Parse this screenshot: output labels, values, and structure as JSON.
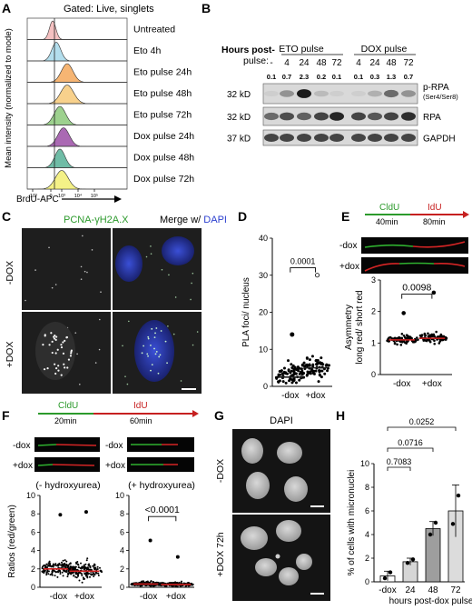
{
  "panels": {
    "A": {
      "letter": "A",
      "gate_label": "Gated: Live, singlets",
      "ylabel": "Mean intensity (normalized to mode)",
      "xlabel": "BrdU-APC",
      "xticks": [
        "-10³",
        "0",
        "10³",
        "10⁴",
        "10⁵"
      ],
      "rows": [
        {
          "label": "Untreated",
          "color": "#f3b6b6"
        },
        {
          "label": "Eto 4h",
          "color": "#a6d8ea"
        },
        {
          "label": "Eto pulse 24h",
          "color": "#f5a85a"
        },
        {
          "label": "Eto pulse 48h",
          "color": "#f7c978"
        },
        {
          "label": "Eto pulse 72h",
          "color": "#8cc97a"
        },
        {
          "label": "Dox pulse 24h",
          "color": "#9b4fa6"
        },
        {
          "label": "Dox pulse 48h",
          "color": "#56b096"
        },
        {
          "label": "Dox pulse 72h",
          "color": "#f2ee72"
        }
      ]
    },
    "B": {
      "letter": "B",
      "hours_label": "Hours post-",
      "pulse_label": "pulse:",
      "groups": [
        "ETO pulse",
        "DOX pulse"
      ],
      "lanes": [
        "-",
        "4",
        "24",
        "48",
        "72",
        "4",
        "24",
        "48",
        "72"
      ],
      "quant": [
        "0.1",
        "0.7",
        "2.3",
        "0.2",
        "0.1",
        "0.1",
        "0.3",
        "1.3",
        "0.7"
      ],
      "blots": [
        {
          "kd": "32 kD",
          "name": "p-RPA",
          "sub": "(Ser4/Ser8)"
        },
        {
          "kd": "32 kD",
          "name": "RPA",
          "sub": ""
        },
        {
          "kd": "37 kD",
          "name": "GAPDH",
          "sub": ""
        }
      ]
    },
    "C": {
      "letter": "C",
      "col1": "PCNA-γH2A.X",
      "col2_prefix": "Merge w/ ",
      "col2_dapi": "DAPI",
      "row1": "-DOX",
      "row2": "+DOX"
    },
    "D": {
      "letter": "D",
      "p_label": "0.0001"
    },
    "E": {
      "letter": "E",
      "cldu": "CldU",
      "cldu_time": "40min",
      "idu": "IdU",
      "idu_time": "80min",
      "fiber1": "-dox",
      "fiber2": "+dox",
      "p_label": "0.0098"
    },
    "F": {
      "letter": "F",
      "cldu": "CldU",
      "cldu_time": "20min",
      "idu": "IdU",
      "idu_time": "60min",
      "fiber_labels": [
        "-dox",
        "+dox",
        "-dox",
        "+dox"
      ],
      "sub1": "(- hydroxyurea)",
      "sub2": "(+ hydroxyurea)",
      "p_label": "<0.0001"
    },
    "G": {
      "letter": "G",
      "title": "DAPI",
      "row1": "-DOX",
      "row2": "+DOX 72h"
    },
    "H": {
      "letter": "H",
      "pvals": [
        "0.0252",
        "0.0716",
        "0.7083"
      ]
    }
  },
  "chart_data": [
    {
      "type": "scatter",
      "panel": "D",
      "categories": [
        "-dox",
        "+dox"
      ],
      "ylabel": "PLA foci/ nucleus",
      "ylim": [
        0,
        40
      ],
      "yticks": [
        0,
        10,
        20,
        30,
        40
      ],
      "medians": [
        2.5,
        5.0
      ],
      "max_points": [
        14,
        30
      ]
    },
    {
      "type": "scatter",
      "panel": "E",
      "categories": [
        "-dox",
        "+dox"
      ],
      "ylabel": "Asymmetry long red/ short red",
      "ylim": [
        0,
        3
      ],
      "yticks": [
        0,
        1,
        2,
        3
      ],
      "medians": [
        1.1,
        1.15
      ],
      "max_points": [
        1.95,
        2.6
      ]
    },
    {
      "type": "scatter",
      "panel": "F-left",
      "categories": [
        "-dox",
        "+dox"
      ],
      "ylabel": "Ratios (red/green)",
      "ylim": [
        0,
        10
      ],
      "yticks": [
        0,
        2,
        4,
        6,
        8,
        10
      ],
      "medians": [
        2.0,
        1.75
      ],
      "max_points": [
        7.9,
        8.2
      ]
    },
    {
      "type": "scatter",
      "panel": "F-right",
      "categories": [
        "-dox",
        "+dox"
      ],
      "ylim": [
        0,
        10
      ],
      "yticks": [
        0,
        2,
        4,
        6,
        8,
        10
      ],
      "medians": [
        0.35,
        0.3
      ],
      "max_points": [
        5.1,
        3.3
      ]
    },
    {
      "type": "bar",
      "panel": "H",
      "categories": [
        "-dox",
        "24",
        "48",
        "72"
      ],
      "values": [
        0.5,
        1.7,
        4.5,
        6.0
      ],
      "errors": [
        0.4,
        0.3,
        0.6,
        2.2
      ],
      "points": [
        [
          0.3,
          0.8
        ],
        [
          1.6,
          1.9
        ],
        [
          4.0,
          5.0
        ],
        [
          4.9,
          7.3
        ]
      ],
      "ylabel": "% of cells with micronuclei",
      "xlabel": "hours post-dox pulse",
      "ylim": [
        0,
        10
      ],
      "yticks": [
        0,
        2,
        4,
        6,
        8,
        10
      ]
    }
  ]
}
